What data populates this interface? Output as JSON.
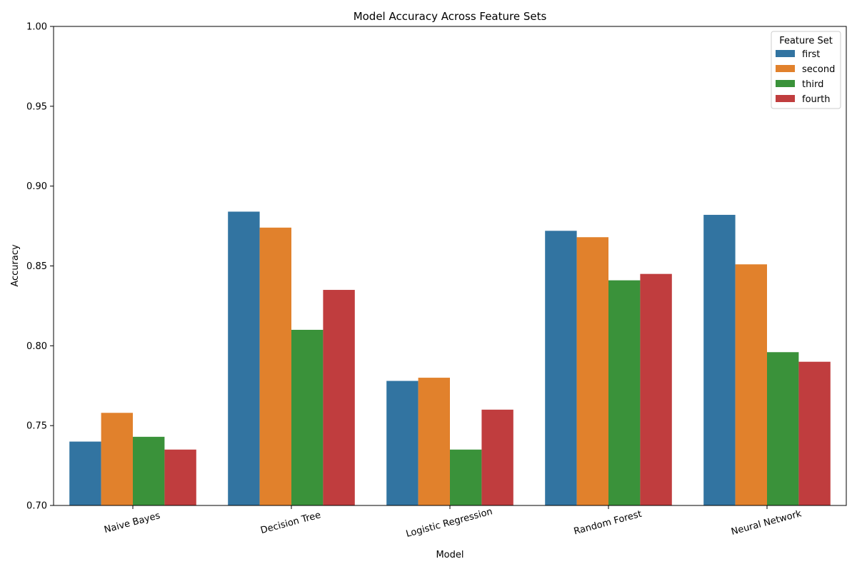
{
  "chart_data": {
    "type": "bar",
    "title": "Model Accuracy Across Feature Sets",
    "xlabel": "Model",
    "ylabel": "Accuracy",
    "ylim": [
      0.7,
      1.0
    ],
    "yticks": [
      0.7,
      0.75,
      0.8,
      0.85,
      0.9,
      0.95,
      1.0
    ],
    "ytick_labels": [
      "0.70",
      "0.75",
      "0.80",
      "0.85",
      "0.90",
      "0.95",
      "1.00"
    ],
    "categories": [
      "Naive Bayes",
      "Decision Tree",
      "Logistic Regression",
      "Random Forest",
      "Neural Network"
    ],
    "legend": {
      "title": "Feature Set",
      "placement": "top-right"
    },
    "grid": false,
    "series": [
      {
        "name": "first",
        "color": "#3274a1",
        "values": [
          0.74,
          0.884,
          0.778,
          0.872,
          0.882
        ]
      },
      {
        "name": "second",
        "color": "#e1812c",
        "values": [
          0.758,
          0.874,
          0.78,
          0.868,
          0.851
        ]
      },
      {
        "name": "third",
        "color": "#3a923a",
        "values": [
          0.743,
          0.81,
          0.735,
          0.841,
          0.796
        ]
      },
      {
        "name": "fourth",
        "color": "#c03d3e",
        "values": [
          0.735,
          0.835,
          0.76,
          0.845,
          0.79
        ]
      }
    ]
  }
}
